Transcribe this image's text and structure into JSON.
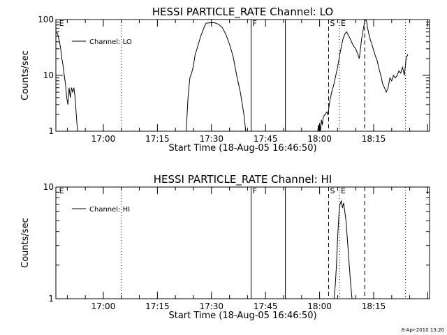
{
  "footer": {
    "timestamp": "8-Apr-2010 13:20"
  },
  "chart_data": [
    {
      "type": "line",
      "title": "HESSI PARTICLE_RATE Channel: LO",
      "xlabel": "Start Time (18-Aug-05 16:46:50)",
      "ylabel": "Counts/sec",
      "yscale": "log",
      "ylim": [
        1,
        100
      ],
      "yticks": [
        1,
        10,
        100
      ],
      "ytick_labels": [
        "1",
        "10",
        "100"
      ],
      "xlim": [
        "16:46:50",
        "18:30:30"
      ],
      "xticks": [
        "17:00",
        "17:15",
        "17:30",
        "17:45",
        "18:00",
        "18:15"
      ],
      "grid": false,
      "legend": {
        "position": "top-left",
        "entries": [
          "Channel: LO"
        ]
      },
      "markers": [
        {
          "time": "16:47:20",
          "style": "none",
          "label": "E"
        },
        {
          "time": "17:05:00",
          "style": "dotted",
          "label": ""
        },
        {
          "time": "17:41:00",
          "style": "solid",
          "label": "F"
        },
        {
          "time": "17:50:30",
          "style": "solid",
          "label": ""
        },
        {
          "time": "18:02:30",
          "style": "dashed",
          "label": "S"
        },
        {
          "time": "18:05:30",
          "style": "dotted",
          "label": "E"
        },
        {
          "time": "18:12:30",
          "style": "dashed",
          "label": ""
        },
        {
          "time": "18:23:50",
          "style": "dotted",
          "label": ""
        }
      ],
      "series": [
        {
          "name": "Channel: LO",
          "segments": [
            {
              "x": [
                "16:46:50",
                "16:47:20",
                "16:47:50",
                "16:48:10",
                "16:48:30",
                "16:48:50",
                "16:49:10",
                "16:49:30",
                "16:49:50",
                "16:50:10",
                "16:50:30",
                "16:50:50",
                "16:51:10",
                "16:51:30",
                "16:51:50",
                "16:52:10",
                "16:52:30",
                "16:52:50"
              ],
              "y": [
                60,
                55,
                40,
                30,
                20,
                15,
                10,
                7,
                4,
                3,
                6,
                4,
                6,
                5,
                6,
                4,
                2,
                1
              ]
            },
            {
              "x": [
                "17:23:00",
                "17:23:30",
                "17:24:00",
                "17:24:30",
                "17:25:00",
                "17:25:30",
                "17:26:00",
                "17:27:00",
                "17:28:00",
                "17:28:30",
                "17:30:00",
                "17:31:00",
                "17:32:00",
                "17:33:00",
                "17:34:00",
                "17:35:00",
                "17:36:00",
                "17:37:00",
                "17:38:00",
                "17:39:00",
                "17:39:30"
              ],
              "y": [
                1,
                4,
                9,
                11,
                15,
                24,
                30,
                50,
                74,
                86,
                88,
                87,
                82,
                72,
                54,
                36,
                22,
                10,
                5,
                2,
                1
              ]
            },
            {
              "x": [
                "17:59:30",
                "17:59:40",
                "17:59:50",
                "18:00:00",
                "18:00:15",
                "18:00:30",
                "18:00:45",
                "18:01:00",
                "18:01:30",
                "18:02:00",
                "18:02:20",
                "18:02:50",
                "18:03:20",
                "18:04:00",
                "18:04:30",
                "18:05:00",
                "18:05:30",
                "18:06:00",
                "18:06:30",
                "18:07:00",
                "18:07:30",
                "18:08:00",
                "18:08:30",
                "18:09:00",
                "18:09:30",
                "18:10:00",
                "18:10:30",
                "18:11:00",
                "18:11:20",
                "18:11:40",
                "18:12:00",
                "18:12:20",
                "18:12:40",
                "18:13:00",
                "18:13:20",
                "18:13:40",
                "18:14:00",
                "18:14:30",
                "18:15:00",
                "18:15:30",
                "18:16:00",
                "18:16:30",
                "18:17:00",
                "18:17:30",
                "18:18:00",
                "18:18:30",
                "18:19:00",
                "18:19:30",
                "18:20:00",
                "18:20:30",
                "18:21:00",
                "18:21:30",
                "18:22:00",
                "18:22:30",
                "18:23:00",
                "18:23:30",
                "18:24:00",
                "18:24:30"
              ],
              "y": [
                1,
                1.3,
                1,
                1.4,
                1,
                1.6,
                1.3,
                1.8,
                2,
                2.2,
                2,
                3.5,
                5,
                7,
                10,
                14,
                22,
                32,
                45,
                55,
                60,
                52,
                45,
                38,
                33,
                30,
                25,
                20,
                30,
                45,
                60,
                80,
                100,
                95,
                70,
                55,
                45,
                36,
                28,
                22,
                18,
                13,
                10,
                7,
                6,
                5,
                6,
                9,
                8,
                10,
                9,
                10,
                12,
                11,
                14,
                10,
                20,
                24
              ]
            }
          ]
        }
      ]
    },
    {
      "type": "line",
      "title": "HESSI PARTICLE_RATE Channel: HI",
      "xlabel": "Start Time (18-Aug-05 16:46:50)",
      "ylabel": "Counts/sec",
      "yscale": "log",
      "ylim": [
        1,
        10
      ],
      "yticks": [
        1,
        10
      ],
      "ytick_labels": [
        "1",
        "10"
      ],
      "xlim": [
        "16:46:50",
        "18:30:30"
      ],
      "xticks": [
        "17:00",
        "17:15",
        "17:30",
        "17:45",
        "18:00",
        "18:15"
      ],
      "grid": false,
      "legend": {
        "position": "top-left",
        "entries": [
          "Channel: HI"
        ]
      },
      "markers": [
        {
          "time": "16:47:20",
          "style": "none",
          "label": "E"
        },
        {
          "time": "17:05:00",
          "style": "dotted",
          "label": ""
        },
        {
          "time": "17:41:00",
          "style": "solid",
          "label": "F"
        },
        {
          "time": "17:50:30",
          "style": "solid",
          "label": ""
        },
        {
          "time": "18:02:30",
          "style": "dashed",
          "label": "S"
        },
        {
          "time": "18:05:30",
          "style": "dotted",
          "label": "E"
        },
        {
          "time": "18:12:30",
          "style": "dashed",
          "label": ""
        },
        {
          "time": "18:23:50",
          "style": "dotted",
          "label": ""
        }
      ],
      "series": [
        {
          "name": "Channel: HI",
          "segments": [
            {
              "x": [
                "18:04:00",
                "18:04:20",
                "18:04:40",
                "18:05:00",
                "18:05:20",
                "18:05:40",
                "18:06:00",
                "18:06:20",
                "18:06:40",
                "18:07:00",
                "18:07:20",
                "18:07:40",
                "18:08:00",
                "18:08:20",
                "18:08:40",
                "18:09:00"
              ],
              "y": [
                1,
                1.3,
                2,
                3.5,
                5.5,
                7,
                7.5,
                6.5,
                7.2,
                6,
                5,
                3.5,
                2.5,
                1.8,
                1.3,
                1
              ]
            }
          ]
        }
      ]
    }
  ]
}
